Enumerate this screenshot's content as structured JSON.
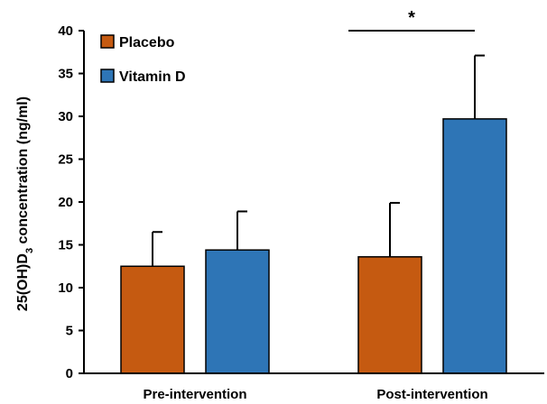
{
  "chart_data": {
    "type": "bar",
    "categories": [
      "Pre-intervention",
      "Post-intervention"
    ],
    "series": [
      {
        "name": "Placebo",
        "color": "#C55A11",
        "values": [
          12.5,
          13.6
        ],
        "error": [
          4.0,
          6.3
        ]
      },
      {
        "name": "Vitamin D",
        "color": "#2E75B6",
        "values": [
          14.4,
          29.7
        ],
        "error": [
          4.5,
          7.4
        ]
      }
    ],
    "ylabel_pre": "25(OH)D",
    "ylabel_sub": "3",
    "ylabel_post": " concentration (ng/ml)",
    "ylim": [
      0,
      40
    ],
    "yticks": [
      0,
      5,
      10,
      15,
      20,
      25,
      30,
      35,
      40
    ],
    "legend_position": "top-left",
    "significance": {
      "category_index": 1,
      "label": "*"
    }
  }
}
